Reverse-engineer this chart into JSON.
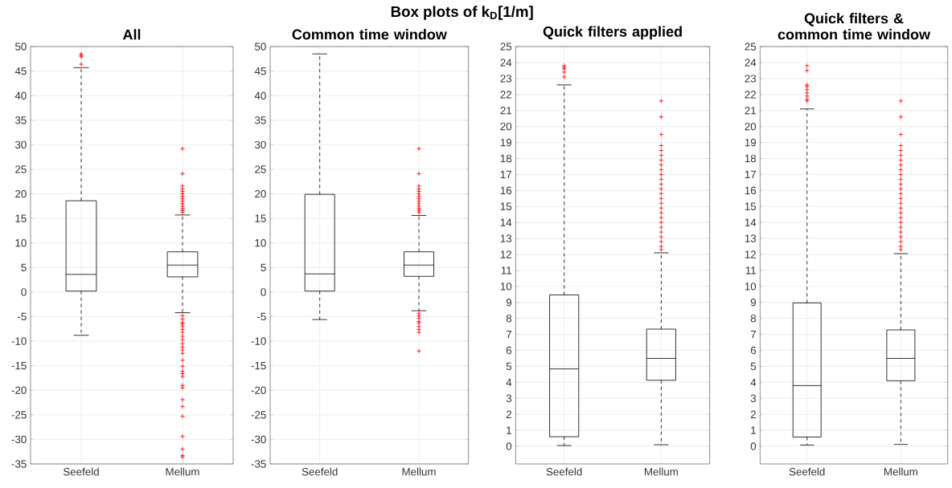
{
  "chart_data": [
    {
      "type": "box",
      "title": "All",
      "annotations": [
        "Box plots of k$_{D}$[1/m]"
      ],
      "categories": [
        "Seefeld",
        "Mellum"
      ],
      "color": "#000000",
      "marker": "cross",
      "line_style": "dashed",
      "grid": true,
      "ylim": [
        -35,
        50
      ],
      "yticks": [
        -35,
        -30,
        -25,
        -20,
        -15,
        -10,
        -5,
        0,
        5,
        10,
        15,
        20,
        25,
        30,
        35,
        40,
        45,
        50
      ],
      "boxes": [
        {
          "low": -8.8,
          "q1": 0.2,
          "median": 3.6,
          "q3": 18.6,
          "high": 45.7,
          "outliers": [
            46.4,
            47.9,
            48.2,
            48.5
          ]
        },
        {
          "low": -4.2,
          "q1": 3.1,
          "median": 5.5,
          "q3": 8.2,
          "high": 15.7,
          "outliers": [
            16.2,
            16.6,
            17,
            17.5,
            18,
            18.5,
            19,
            19.5,
            20,
            20.5,
            21,
            21.6,
            24.1,
            29.2,
            -4.8,
            -5.5,
            -6.2,
            -6.5,
            -7,
            -7.6,
            -8.2,
            -9,
            -9.7,
            -10.5,
            -11.2,
            -11.8,
            -12.5,
            -13.9,
            -15.1,
            -16.1,
            -16.6,
            -17.2,
            -19,
            -19.5,
            -21.9,
            -23.3,
            -25.3,
            -29.4,
            -32,
            -33.3,
            -33.6
          ]
        }
      ]
    },
    {
      "type": "box",
      "title": "Common time window",
      "categories": [
        "Seefeld",
        "Mellum"
      ],
      "color": "#000000",
      "marker": "cross",
      "line_style": "dashed",
      "grid": true,
      "ylim": [
        -35,
        50
      ],
      "yticks": [
        -35,
        -30,
        -25,
        -20,
        -15,
        -10,
        -5,
        0,
        5,
        10,
        15,
        20,
        25,
        30,
        35,
        40,
        45,
        50
      ],
      "boxes": [
        {
          "low": -5.6,
          "q1": 0.2,
          "median": 3.7,
          "q3": 19.9,
          "high": 48.5
        },
        {
          "low": -3.8,
          "q1": 3.2,
          "median": 5.5,
          "q3": 8.2,
          "high": 15.6,
          "outliers": [
            16.2,
            16.6,
            17,
            17.5,
            18,
            18.5,
            19,
            19.5,
            20,
            20.5,
            21,
            21.6,
            24.1,
            29.2,
            -4.3,
            -4.8,
            -5.3,
            -6,
            -6.3,
            -7,
            -7.6,
            -8.2,
            -12
          ]
        }
      ]
    },
    {
      "type": "box",
      "title": "Quick filters applied",
      "categories": [
        "Seefeld",
        "Mellum"
      ],
      "color": "#000000",
      "marker": "cross",
      "line_style": "dashed",
      "grid": true,
      "ylim": [
        -1.1,
        25
      ],
      "yticks": [
        0,
        1,
        2,
        3,
        4,
        5,
        6,
        7,
        8,
        9,
        10,
        11,
        12,
        13,
        14,
        15,
        16,
        17,
        18,
        19,
        20,
        21,
        22,
        23,
        24,
        25
      ],
      "boxes": [
        {
          "low": 0.05,
          "q1": 0.6,
          "median": 4.84,
          "q3": 9.47,
          "high": 22.6,
          "outliers": [
            23.1,
            23.4,
            23.6,
            23.7,
            23.8
          ]
        },
        {
          "low": 0.1,
          "q1": 4.13,
          "median": 5.5,
          "q3": 7.33,
          "high": 12.1,
          "outliers": [
            12.3,
            12.5,
            12.8,
            13.1,
            13.4,
            13.7,
            14,
            14.3,
            14.6,
            14.9,
            15.2,
            15.5,
            15.8,
            16.1,
            16.4,
            16.7,
            17,
            17.3,
            17.6,
            17.9,
            18.2,
            18.5,
            18.8,
            19.5,
            20.6,
            21.6
          ]
        }
      ]
    },
    {
      "type": "box",
      "title": "Quick filters & common time window",
      "categories": [
        "Seefeld",
        "Mellum"
      ],
      "color": "#000000",
      "marker": "cross",
      "line_style": "dashed",
      "grid": true,
      "ylim": [
        -1.1,
        25
      ],
      "yticks": [
        0,
        1,
        2,
        3,
        4,
        5,
        6,
        7,
        8,
        9,
        10,
        11,
        12,
        13,
        14,
        15,
        16,
        17,
        18,
        19,
        20,
        21,
        22,
        23,
        24,
        25
      ],
      "boxes": [
        {
          "low": 0.08,
          "q1": 0.58,
          "median": 3.8,
          "q3": 8.97,
          "high": 21.1,
          "outliers": [
            21.6,
            21.7,
            21.9,
            22.1,
            22.3,
            22.5,
            22.6,
            23.5,
            23.8
          ]
        },
        {
          "low": 0.12,
          "q1": 4.1,
          "median": 5.5,
          "q3": 7.28,
          "high": 12.05,
          "outliers": [
            12.3,
            12.5,
            12.8,
            13.1,
            13.4,
            13.7,
            14,
            14.3,
            14.6,
            14.9,
            15.2,
            15.5,
            15.8,
            16.1,
            16.4,
            16.7,
            17,
            17.3,
            17.6,
            17.9,
            18.2,
            18.5,
            18.8,
            19.5,
            20.6,
            21.6
          ]
        }
      ]
    }
  ]
}
